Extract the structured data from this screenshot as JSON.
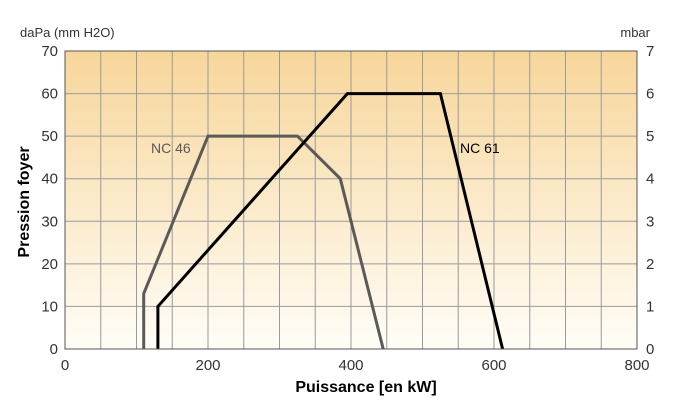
{
  "chart_data": {
    "type": "line",
    "title": "",
    "xlabel": "Puissance [en kW]",
    "ylabel": "Pression foyer",
    "y_unit_left": "daPa (mm H2O)",
    "y_unit_right": "mbar",
    "xlim": [
      0,
      800
    ],
    "ylim": [
      0,
      70
    ],
    "ylim_right": [
      0,
      7
    ],
    "x_ticks": [
      "0",
      "200",
      "400",
      "600",
      "800"
    ],
    "y_ticks": [
      "0",
      "10",
      "20",
      "30",
      "40",
      "50",
      "60",
      "70"
    ],
    "y_ticks_right": [
      "0",
      "1",
      "2",
      "3",
      "4",
      "5",
      "6",
      "7"
    ],
    "grid": true,
    "background_gradient": [
      "#f7d69a",
      "#fffdf7"
    ],
    "series": [
      {
        "name": "NC 46",
        "color": "#5a5a5a",
        "x": [
          110,
          110,
          200,
          325,
          385,
          445
        ],
        "y": [
          0,
          13,
          50,
          50,
          40,
          0
        ]
      },
      {
        "name": "NC 61",
        "color": "#000000",
        "x": [
          130,
          130,
          395,
          525,
          612
        ],
        "y": [
          0,
          10,
          60,
          60,
          0
        ]
      }
    ]
  }
}
